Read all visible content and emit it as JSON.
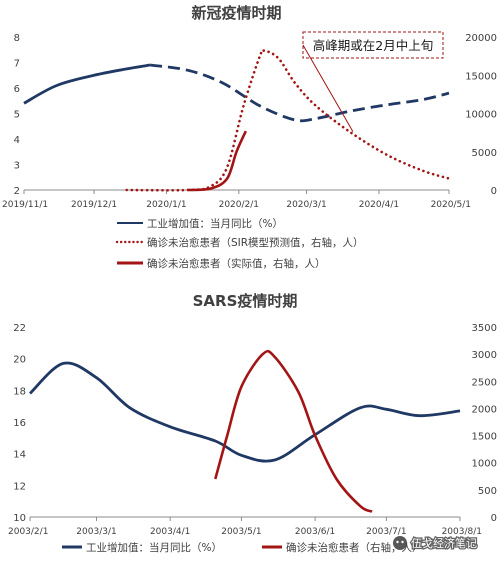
{
  "chart_data": [
    {
      "type": "line",
      "title": "新冠疫情时期",
      "x_ticks": [
        "2019/11/1",
        "2019/12/1",
        "2020/1/1",
        "2020/2/1",
        "2020/3/1",
        "2020/4/1",
        "2020/5/1"
      ],
      "ylim": [
        2,
        8
      ],
      "y_ticks": [
        2,
        3,
        4,
        5,
        6,
        7,
        8
      ],
      "y2lim": [
        0,
        20000
      ],
      "y2_ticks": [
        0,
        5000,
        10000,
        15000,
        20000
      ],
      "annotation": "高峰期或在2月中上旬",
      "legend_position": "bottom",
      "colors": {
        "industry": "#1f3864",
        "cases": "#a31515"
      },
      "series": [
        {
          "name": "工业增加值：当月同比（%）",
          "axis": "left",
          "style": "solid",
          "points": [
            [
              "2019/11/1",
              5.4
            ],
            [
              "2019/11/15",
              6.1
            ],
            [
              "2019/12/1",
              6.5
            ],
            [
              "2019/12/15",
              6.75
            ],
            [
              "2019/12/25",
              6.9
            ]
          ]
        },
        {
          "name": "工业增加值：当月同比（%）",
          "axis": "left",
          "style": "dashed",
          "points": [
            [
              "2019/12/25",
              6.9
            ],
            [
              "2020/1/10",
              6.7
            ],
            [
              "2020/1/25",
              6.2
            ],
            [
              "2020/2/10",
              5.3
            ],
            [
              "2020/2/25",
              4.75
            ],
            [
              "2020/3/5",
              4.8
            ],
            [
              "2020/3/20",
              5.1
            ],
            [
              "2020/4/5",
              5.35
            ],
            [
              "2020/4/20",
              5.55
            ],
            [
              "2020/5/1",
              5.8
            ]
          ]
        },
        {
          "name": "确诊未治愈患者（SIR模型预测值，右轴，人）",
          "axis": "right",
          "style": "dotted",
          "points": [
            [
              "2019/12/15",
              0
            ],
            [
              "2020/1/10",
              0
            ],
            [
              "2020/1/20",
              500
            ],
            [
              "2020/1/27",
              3000
            ],
            [
              "2020/2/3",
              11000
            ],
            [
              "2020/2/10",
              17500
            ],
            [
              "2020/2/12",
              18200
            ],
            [
              "2020/2/18",
              17200
            ],
            [
              "2020/2/25",
              14000
            ],
            [
              "2020/3/5",
              11000
            ],
            [
              "2020/3/20",
              7500
            ],
            [
              "2020/4/5",
              4500
            ],
            [
              "2020/4/20",
              2500
            ],
            [
              "2020/5/1",
              1500
            ]
          ]
        },
        {
          "name": "确诊未治愈患者（实际值，右轴，人）",
          "axis": "right",
          "style": "solid",
          "points": [
            [
              "2020/1/10",
              0
            ],
            [
              "2020/1/20",
              200
            ],
            [
              "2020/1/27",
              1500
            ],
            [
              "2020/1/31",
              5000
            ],
            [
              "2020/2/4",
              7700
            ]
          ]
        }
      ]
    },
    {
      "type": "line",
      "title": "SARS疫情时期",
      "x_ticks": [
        "2003/2/1",
        "2003/3/1",
        "2003/4/1",
        "2003/5/1",
        "2003/6/1",
        "2003/7/1",
        "2003/8/1"
      ],
      "ylim": [
        10,
        22
      ],
      "y_ticks": [
        10,
        12,
        14,
        16,
        18,
        20,
        22
      ],
      "y2lim": [
        0,
        3500
      ],
      "y2_ticks": [
        0,
        500,
        1000,
        1500,
        2000,
        2500,
        3000,
        3500
      ],
      "legend_position": "bottom",
      "watermark": "伍戈经济笔记",
      "colors": {
        "industry": "#1f3864",
        "cases": "#a31515"
      },
      "series": [
        {
          "name": "工业增加值：当月同比（%）",
          "axis": "left",
          "style": "solid",
          "points": [
            [
              "2003/2/1",
              17.8
            ],
            [
              "2003/2/15",
              19.7
            ],
            [
              "2003/3/1",
              18.8
            ],
            [
              "2003/3/15",
              16.9
            ],
            [
              "2003/4/1",
              15.7
            ],
            [
              "2003/4/20",
              14.8
            ],
            [
              "2003/5/1",
              13.9
            ],
            [
              "2003/5/15",
              13.6
            ],
            [
              "2003/6/1",
              15.2
            ],
            [
              "2003/6/20",
              16.9
            ],
            [
              "2003/7/1",
              16.8
            ],
            [
              "2003/7/15",
              16.4
            ],
            [
              "2003/8/1",
              16.7
            ]
          ]
        },
        {
          "name": "确诊未治愈患者（右轴，人）",
          "axis": "right",
          "style": "solid",
          "points": [
            [
              "2003/4/20",
              700
            ],
            [
              "2003/4/25",
              1500
            ],
            [
              "2003/5/1",
              2400
            ],
            [
              "2003/5/10",
              3000
            ],
            [
              "2003/5/15",
              2950
            ],
            [
              "2003/5/25",
              2300
            ],
            [
              "2003/6/1",
              1500
            ],
            [
              "2003/6/10",
              700
            ],
            [
              "2003/6/20",
              200
            ],
            [
              "2003/6/25",
              100
            ]
          ]
        }
      ]
    }
  ]
}
